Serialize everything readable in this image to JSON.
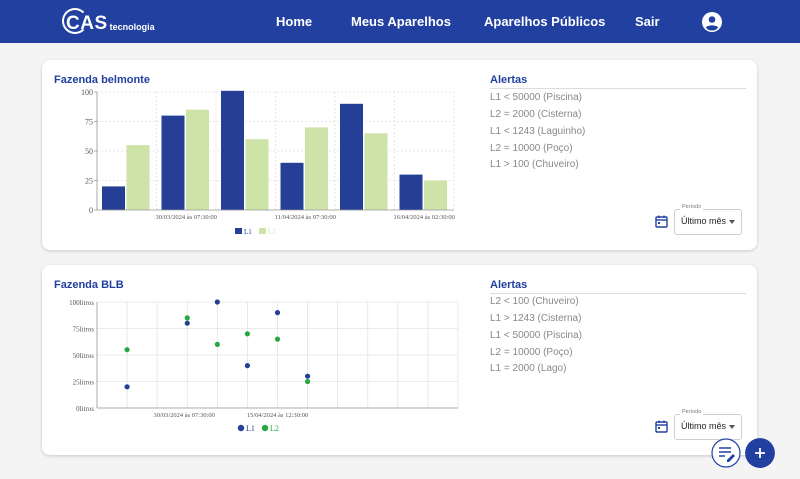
{
  "header": {
    "logo_main": "CAS",
    "logo_sub": "tecnologia",
    "nav": [
      "Home",
      "Meus Aparelhos",
      "Aparelhos Públicos",
      "Sair"
    ]
  },
  "colors": {
    "primary": "#2140a0",
    "series_l1_bar": "#243f95",
    "series_l2_bar": "#cde3a8",
    "series_l2_dot": "#27a843",
    "alert_text": "#888888"
  },
  "cards": [
    {
      "title": "Fazenda belmonte",
      "alerts_title": "Alertas",
      "alerts": [
        "L1 < 50000 (Piscina)",
        "L2 = 2000 (Cisterna)",
        "L1 < 1243 (Laguinho)",
        "L2 = 10000 (Poço)",
        "L1 > 100 (Chuveiro)"
      ],
      "period_label": "Período",
      "period_value": "Último mês"
    },
    {
      "title": "Fazenda BLB",
      "alerts_title": "Alertas",
      "alerts": [
        "L2 < 100 (Chuveiro)",
        "L1 > 1243 (Cisterna)",
        "L1 < 50000 (Piscina)",
        "L2 = 10000 (Poço)",
        "L1 = 2000 (Lago)"
      ],
      "period_label": "Período",
      "period_value": "Último mês"
    }
  ],
  "chart_data": [
    {
      "type": "bar",
      "groups": 6,
      "x_tick_labels": [
        "30/03/2024 às 07:30:00",
        "11/04/2024 às 07:30:00",
        "16/04/2024 às 02:30:00"
      ],
      "y_ticks": [
        0,
        25,
        50,
        75,
        100
      ],
      "ylim": [
        0,
        100
      ],
      "series": [
        {
          "name": "L1",
          "values": [
            20,
            80,
            101,
            40,
            90,
            30
          ]
        },
        {
          "name": "L2",
          "values": [
            55,
            85,
            60,
            70,
            65,
            25
          ]
        }
      ],
      "legend": "bottom",
      "grid": true
    },
    {
      "type": "scatter",
      "x_tick_labels": [
        "30/03/2024 às 07:30:00",
        "15/04/2024 às 12:30:00"
      ],
      "y_tick_labels": [
        "0litros",
        "25litros",
        "50litros",
        "75litros",
        "100litros"
      ],
      "y_ticks": [
        0,
        25,
        50,
        75,
        100
      ],
      "ylim": [
        0,
        100
      ],
      "series": [
        {
          "name": "L1",
          "points": [
            [
              0,
              20
            ],
            [
              1,
              80
            ],
            [
              2,
              100
            ],
            [
              3,
              40
            ],
            [
              4,
              90
            ],
            [
              5,
              30
            ]
          ]
        },
        {
          "name": "L2",
          "points": [
            [
              0,
              55
            ],
            [
              1,
              85
            ],
            [
              2,
              60
            ],
            [
              3,
              70
            ],
            [
              4,
              65
            ],
            [
              5,
              25
            ]
          ]
        }
      ],
      "legend": "bottom",
      "grid": true
    }
  ]
}
